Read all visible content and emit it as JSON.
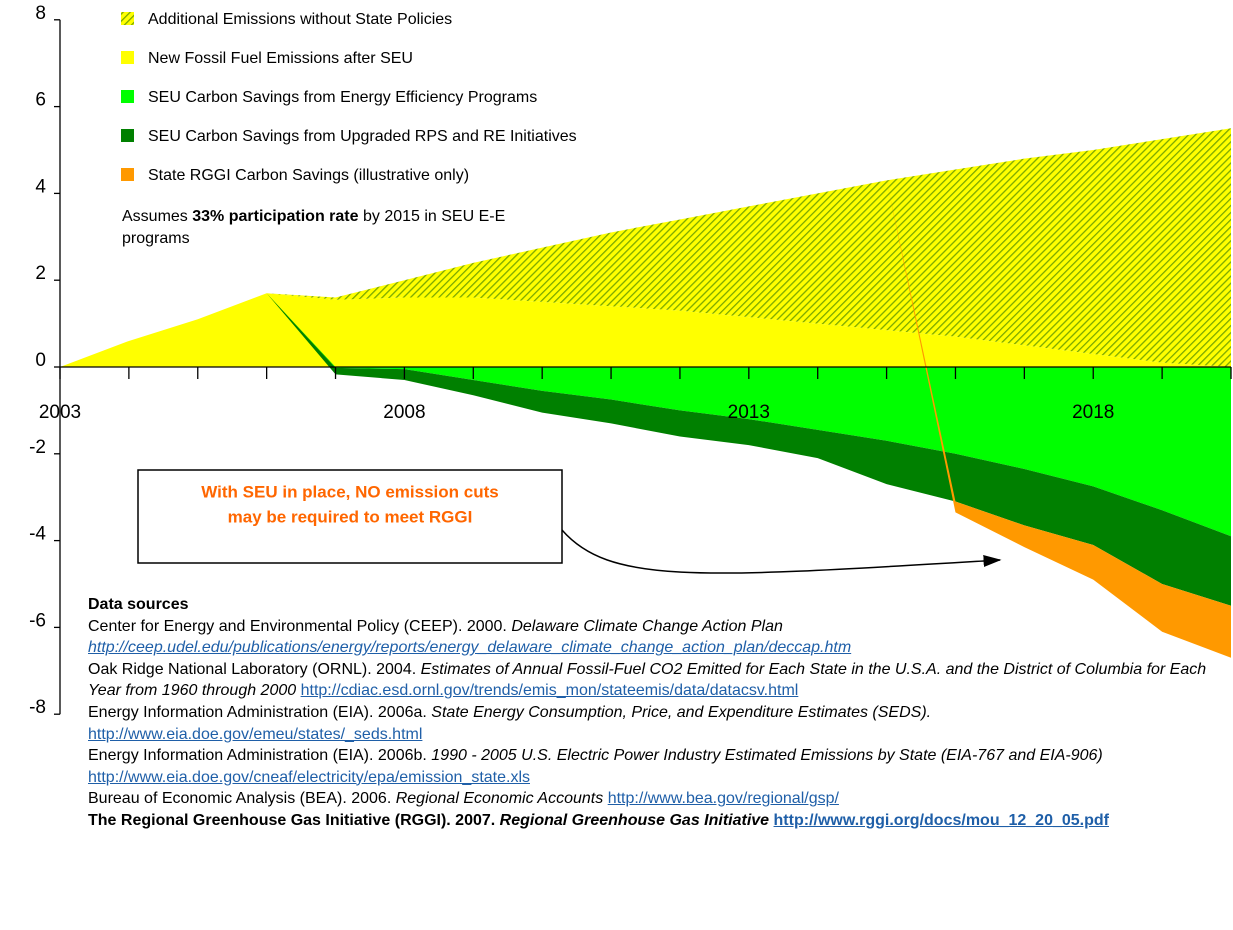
{
  "chart_data": {
    "type": "stacked-area",
    "x": [
      2003,
      2004,
      2005,
      2006,
      2007,
      2008,
      2009,
      2010,
      2011,
      2012,
      2013,
      2014,
      2015,
      2016,
      2017,
      2018,
      2019,
      2020
    ],
    "xlim": [
      2003,
      2020
    ],
    "xticks": [
      2003,
      2008,
      2013,
      2018
    ],
    "ylim": [
      -8,
      8
    ],
    "yticks": [
      8,
      6,
      4,
      2,
      0,
      -2,
      -4,
      -6,
      -8
    ],
    "series": [
      {
        "name": "New Fossil Fuel Emissions after SEU",
        "color": "#ffff00",
        "values": [
          0,
          0.6,
          1.1,
          1.7,
          1.55,
          1.6,
          1.6,
          1.5,
          1.4,
          1.3,
          1.15,
          1.0,
          0.85,
          0.7,
          0.5,
          0.3,
          0.1,
          0
        ]
      },
      {
        "name": "Additional Emissions without State Policies",
        "color": "#7aa800",
        "hatch": true,
        "values": [
          null,
          null,
          null,
          0,
          0.05,
          0.4,
          0.8,
          1.25,
          1.7,
          2.1,
          2.55,
          3.0,
          3.45,
          3.85,
          4.3,
          4.7,
          5.15,
          5.5
        ]
      },
      {
        "name": "SEU Carbon Savings from Energy Efficiency Programs",
        "color": "#00ff00",
        "values": [
          null,
          null,
          null,
          0,
          -0.02,
          -0.05,
          -0.3,
          -0.55,
          -0.75,
          -1.0,
          -1.2,
          -1.45,
          -1.7,
          -2.0,
          -2.35,
          -2.75,
          -3.3,
          -3.9
        ]
      },
      {
        "name": "SEU Carbon Savings from Upgraded  RPS and RE Initiatives",
        "color": "#008000",
        "values": [
          null,
          null,
          null,
          0,
          -0.15,
          -0.25,
          -0.35,
          -0.5,
          -0.55,
          -0.6,
          -0.6,
          -0.65,
          -1.0,
          -1.1,
          -1.3,
          -1.35,
          -1.7,
          -1.6
        ]
      },
      {
        "name": "State RGGI Carbon Savings (illustrative only)",
        "color": "#ff9900",
        "values": [
          null,
          null,
          null,
          null,
          null,
          null,
          null,
          null,
          null,
          null,
          null,
          null,
          0,
          -0.25,
          -0.5,
          -0.8,
          -1.1,
          -1.2
        ]
      }
    ],
    "legend_order": [
      1,
      0,
      2,
      3,
      4
    ],
    "annotation": [
      "Assumes ",
      "33% participation rate",
      " by 2015 in SEU E-E programs"
    ],
    "callout": [
      "With SEU in place, NO emission cuts",
      "may be required to meet RGGI"
    ]
  },
  "sources": {
    "heading": "Data sources",
    "items": [
      {
        "author": "Center for Energy and Environmental Policy (CEEP). 2000.",
        "title": "Delaware Climate Change Action Plan",
        "url": "http://ceep.udel.edu/publications/energy/reports/energy_delaware_climate_change_action_plan/deccap.htm"
      },
      {
        "author": "Oak Ridge National Laboratory (ORNL). 2004.",
        "title": "Estimates of Annual Fossil-Fuel CO2 Emitted for Each State in the U.S.A. and the District of Columbia for Each Year from 1960 through 2000",
        "url": "http://cdiac.esd.ornl.gov/trends/emis_mon/stateemis/data/datacsv.html"
      },
      {
        "author": "Energy Information Administration (EIA). 2006a.",
        "title": "State Energy Consumption, Price, and Expenditure Estimates (SEDS).",
        "url": "http://www.eia.doe.gov/emeu/states/_seds.html"
      },
      {
        "author": "Energy Information Administration (EIA). 2006b.",
        "title": "1990 - 2005 U.S. Electric Power Industry Estimated Emissions by State (EIA-767 and EIA-906)",
        "url": "http://www.eia.doe.gov/cneaf/electricity/epa/emission_state.xls"
      },
      {
        "author": "Bureau of Economic Analysis (BEA). 2006.",
        "title": "Regional Economic Accounts",
        "url": "http://www.bea.gov/regional/gsp/"
      },
      {
        "author": "The Regional Greenhouse Gas Initiative (RGGI). 2007.",
        "title": "Regional Greenhouse Gas Initiative",
        "url": "http://www.rggi.org/docs/mou_12_20_05.pdf",
        "bold": true
      }
    ]
  }
}
